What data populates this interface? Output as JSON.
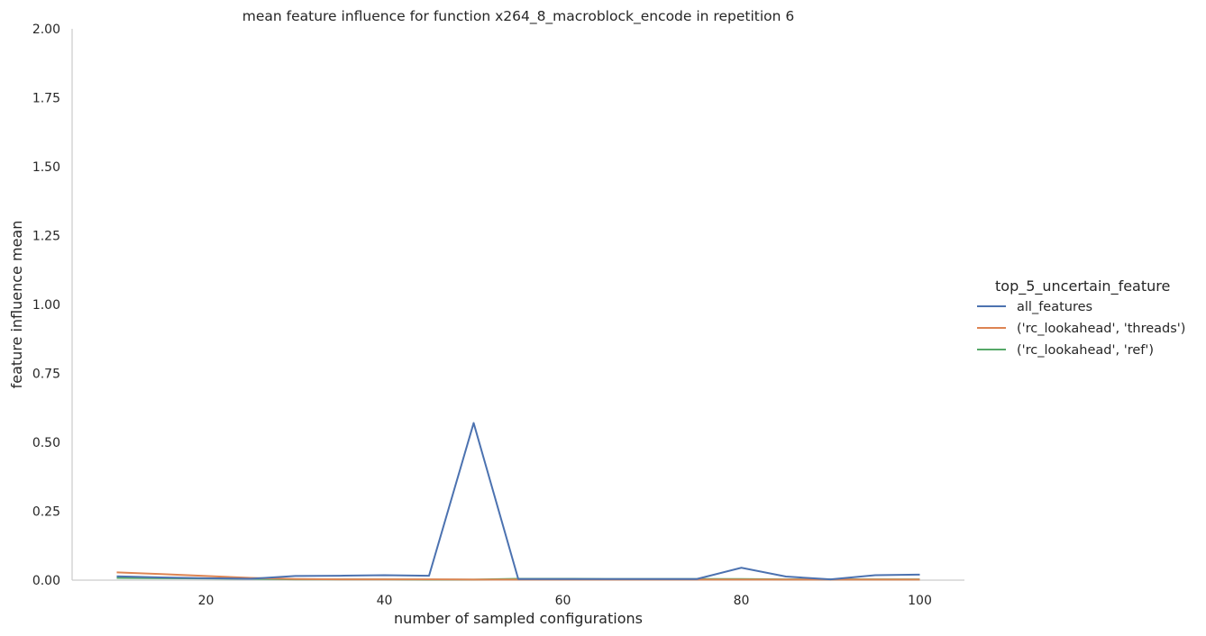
{
  "chart_data": {
    "type": "line",
    "title": "mean feature influence for function x264_8_macroblock_encode in repetition 6",
    "xlabel": "number of sampled configurations",
    "ylabel": "feature influence mean",
    "xlim": [
      5,
      105
    ],
    "ylim": [
      0,
      2.0
    ],
    "x_ticks": [
      20,
      40,
      60,
      80,
      100
    ],
    "y_ticks": [
      0.0,
      0.25,
      0.5,
      0.75,
      1.0,
      1.25,
      1.5,
      1.75,
      2.0
    ],
    "x_tick_labels": [
      "20",
      "40",
      "60",
      "80",
      "100"
    ],
    "y_tick_labels": [
      "0.00",
      "0.25",
      "0.50",
      "0.75",
      "1.00",
      "1.25",
      "1.50",
      "1.75",
      "2.00"
    ],
    "grid": false,
    "legend_placement": "right",
    "legend_title": "top_5_uncertain_feature",
    "x": [
      10,
      15,
      20,
      25,
      30,
      35,
      40,
      45,
      50,
      55,
      60,
      65,
      70,
      75,
      80,
      85,
      90,
      95,
      100
    ],
    "series": [
      {
        "name": "all_features",
        "color": "#4c72b0",
        "values": [
          0.014,
          0.01,
          0.007,
          0.005,
          0.015,
          0.016,
          0.018,
          0.016,
          0.57,
          0.004,
          0.004,
          0.004,
          0.004,
          0.004,
          0.045,
          0.013,
          0.003,
          0.018,
          0.02
        ]
      },
      {
        "name": "('rc_lookahead', 'threads')",
        "color": "#dd8452",
        "values": [
          0.028,
          0.022,
          0.015,
          0.008,
          0.004,
          0.003,
          0.003,
          0.003,
          0.002,
          0.002,
          0.002,
          0.002,
          0.002,
          0.002,
          0.002,
          0.002,
          0.002,
          0.002,
          0.002
        ]
      },
      {
        "name": "('rc_lookahead', 'ref')",
        "color": "#55a868",
        "values": [
          0.008,
          0.007,
          0.006,
          0.005,
          0.003,
          0.003,
          0.003,
          0.002,
          0.002,
          0.005,
          0.005,
          0.004,
          0.004,
          0.004,
          0.004,
          0.003,
          0.003,
          0.003,
          0.003
        ]
      }
    ]
  }
}
